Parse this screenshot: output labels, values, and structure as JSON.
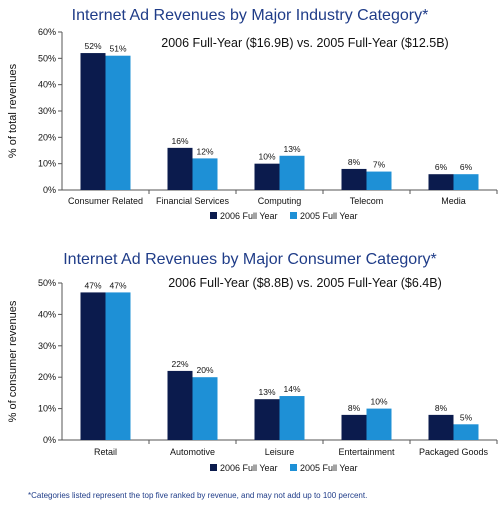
{
  "colors": {
    "series_2006": "#0b1b4d",
    "series_2005": "#1e90d6",
    "axis": "#555555",
    "title": "#1f3c88"
  },
  "chart_data": [
    {
      "type": "bar",
      "title": "Internet Ad Revenues by Major Industry Category*",
      "subtitle": "2006 Full-Year ($16.9B) vs. 2005 Full-Year ($12.5B)",
      "ylabel": "% of total revenues",
      "xlabel": "",
      "ylim": [
        0,
        60
      ],
      "yticks": [
        0,
        10,
        20,
        30,
        40,
        50,
        60
      ],
      "ytick_labels": [
        "0%",
        "10%",
        "20%",
        "30%",
        "40%",
        "50%",
        "60%"
      ],
      "grid": false,
      "legend_position": "bottom",
      "categories": [
        "Consumer Related",
        "Financial Services",
        "Computing",
        "Telecom",
        "Media"
      ],
      "series": [
        {
          "name": "2006 Full Year",
          "values": [
            52,
            16,
            10,
            8,
            6
          ],
          "labels": [
            "52%",
            "16%",
            "10%",
            "8%",
            "6%"
          ]
        },
        {
          "name": "2005 Full Year",
          "values": [
            51,
            12,
            13,
            7,
            6
          ],
          "labels": [
            "51%",
            "12%",
            "13%",
            "7%",
            "6%"
          ]
        }
      ]
    },
    {
      "type": "bar",
      "title": "Internet Ad Revenues by Major Consumer Category*",
      "subtitle": "2006 Full-Year ($8.8B) vs. 2005 Full-Year ($6.4B)",
      "ylabel": "% of consumer revenues",
      "xlabel": "",
      "ylim": [
        0,
        50
      ],
      "yticks": [
        0,
        10,
        20,
        30,
        40,
        50
      ],
      "ytick_labels": [
        "0%",
        "10%",
        "20%",
        "30%",
        "40%",
        "50%"
      ],
      "grid": false,
      "legend_position": "bottom",
      "categories": [
        "Retail",
        "Automotive",
        "Leisure",
        "Entertainment",
        "Packaged Goods"
      ],
      "series": [
        {
          "name": "2006 Full Year",
          "values": [
            47,
            22,
            13,
            8,
            8
          ],
          "labels": [
            "47%",
            "22%",
            "13%",
            "8%",
            "8%"
          ]
        },
        {
          "name": "2005 Full Year",
          "values": [
            47,
            20,
            14,
            10,
            5
          ],
          "labels": [
            "47%",
            "20%",
            "14%",
            "10%",
            "5%"
          ]
        }
      ]
    }
  ],
  "footnote": "*Categories listed represent the top five ranked by revenue, and may not add up to 100 percent."
}
